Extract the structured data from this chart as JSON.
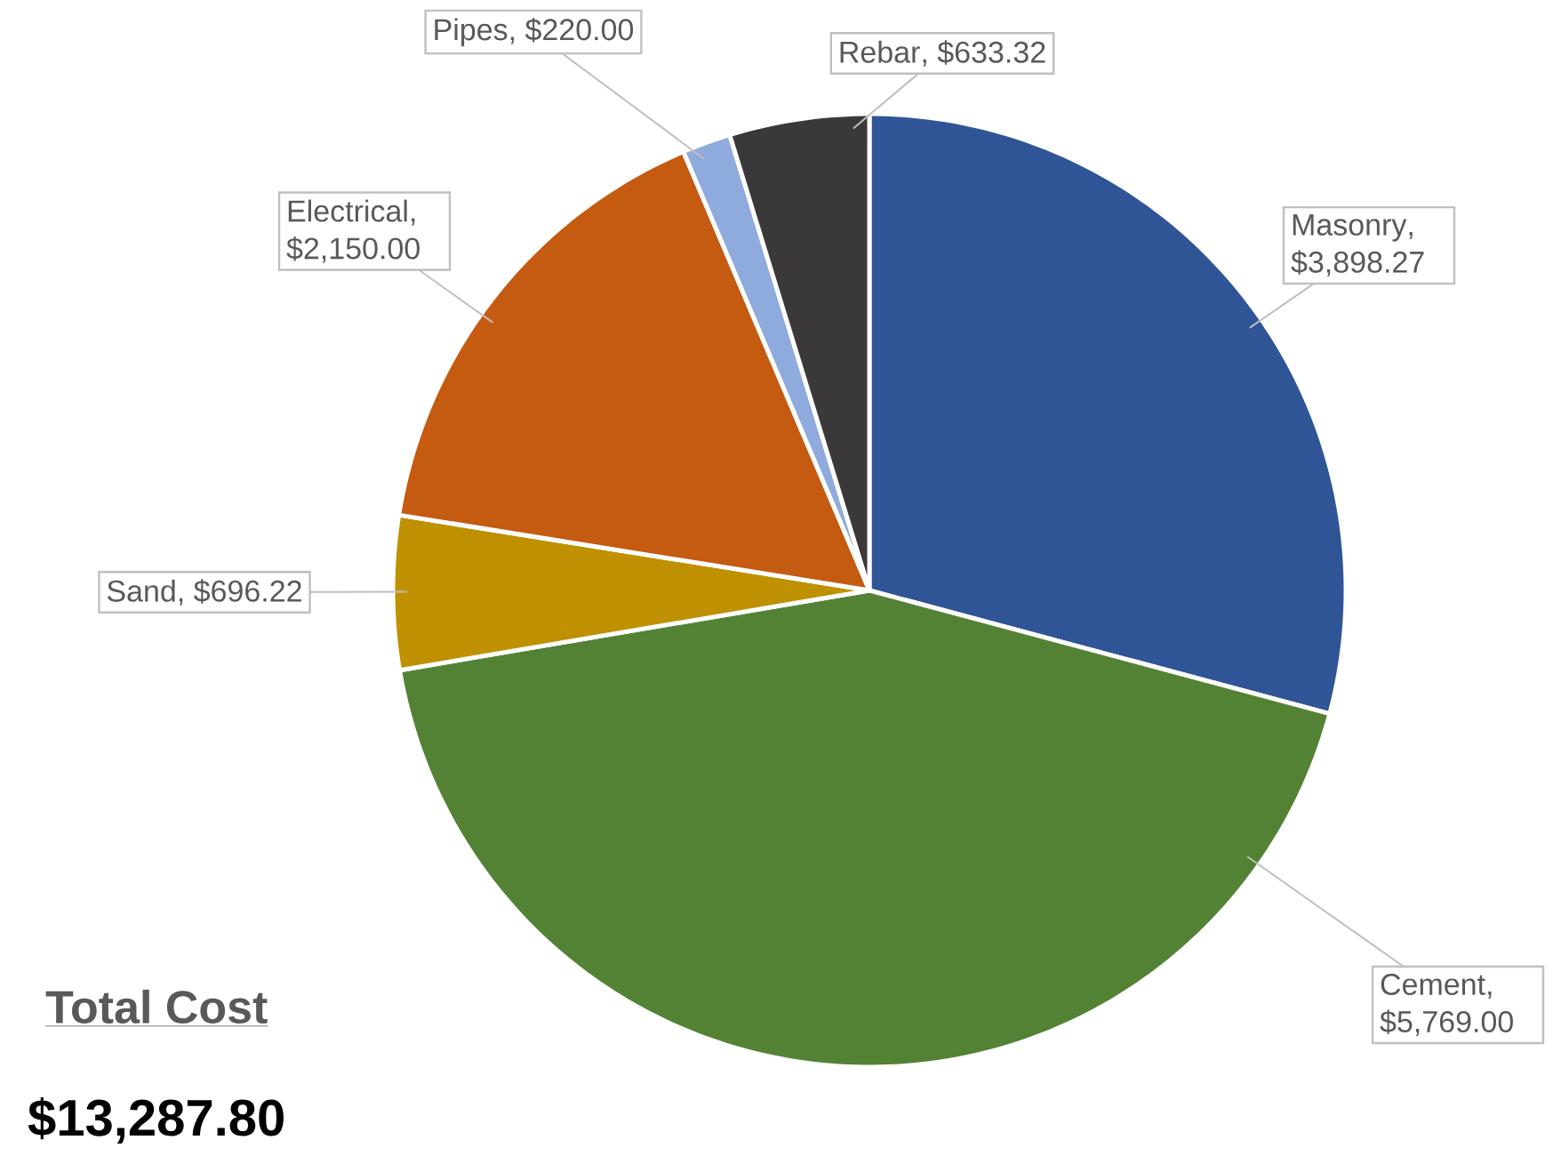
{
  "chart_data": {
    "type": "pie",
    "categories": [
      "Masonry",
      "Cement",
      "Sand",
      "Electrical",
      "Pipes",
      "Rebar"
    ],
    "values": [
      3898.27,
      5769.0,
      696.22,
      2150.0,
      220.0,
      633.32
    ],
    "colors": [
      "#2f5597",
      "#548235",
      "#bf9000",
      "#c55a11",
      "#8faadc",
      "#3a3838"
    ],
    "value_labels": [
      ", $3,898.27",
      ", $5,769.00",
      ", $696.22",
      ", $2,150.00",
      ", $220.00",
      ", $633.32"
    ],
    "annotations": [
      "Total Cost",
      "$13,287.80"
    ]
  }
}
